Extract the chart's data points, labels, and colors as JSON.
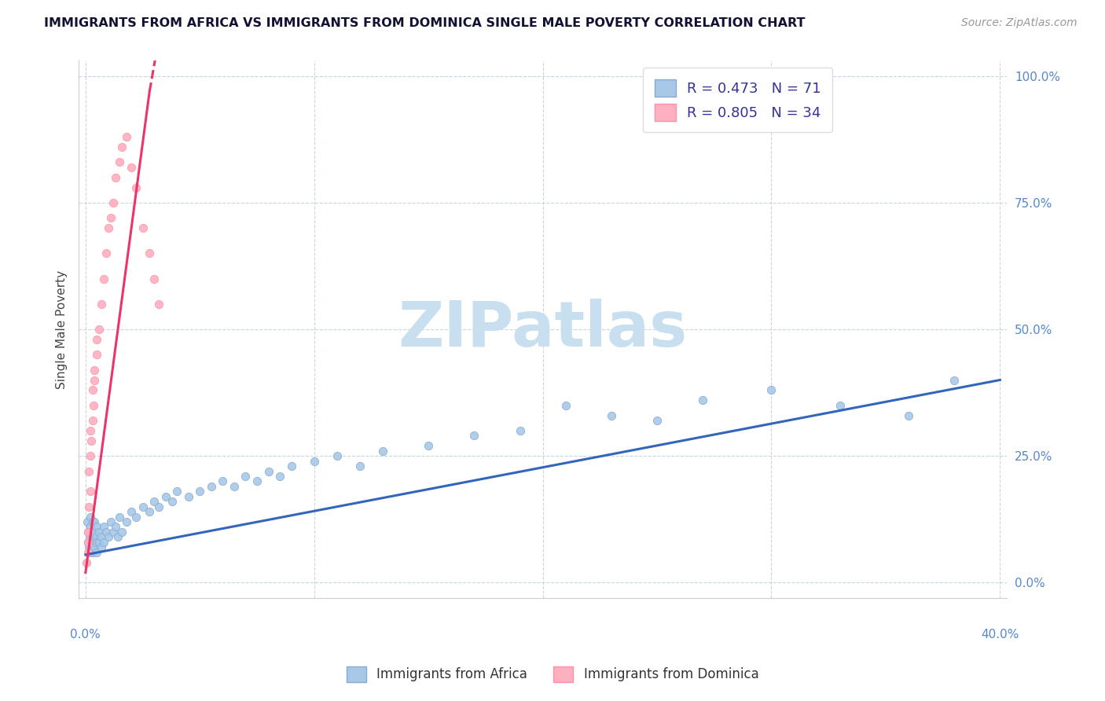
{
  "title": "IMMIGRANTS FROM AFRICA VS IMMIGRANTS FROM DOMINICA SINGLE MALE POVERTY CORRELATION CHART",
  "source": "Source: ZipAtlas.com",
  "ylabel": "Single Male Poverty",
  "xlim": [
    0.0,
    0.4
  ],
  "ylim": [
    0.0,
    1.0
  ],
  "ytick_vals": [
    0.0,
    0.25,
    0.5,
    0.75,
    1.0
  ],
  "ytick_labels": [
    "0.0%",
    "25.0%",
    "50.0%",
    "75.0%",
    "100.0%"
  ],
  "legend_R1": "R = 0.473",
  "legend_N1": "N = 71",
  "legend_R2": "R = 0.805",
  "legend_N2": "N = 34",
  "africa_color": "#a8c8e8",
  "africa_edge": "#88aad0",
  "dominica_color": "#ffb0c0",
  "dominica_edge": "#ff90a8",
  "regression_blue": "#3366bb",
  "regression_pink": "#ee3366",
  "watermark": "ZIPatlas",
  "watermark_color": "#c8dff0",
  "tick_color": "#5588cc",
  "africa_label": "Immigrants from Africa",
  "dominica_label": "Immigrants from Dominica",
  "africa_x": [
    0.0008,
    0.001,
    0.0012,
    0.0015,
    0.0018,
    0.002,
    0.002,
    0.002,
    0.0022,
    0.0025,
    0.003,
    0.003,
    0.003,
    0.003,
    0.0035,
    0.004,
    0.004,
    0.004,
    0.0045,
    0.005,
    0.005,
    0.005,
    0.006,
    0.006,
    0.007,
    0.007,
    0.008,
    0.008,
    0.009,
    0.01,
    0.011,
    0.012,
    0.013,
    0.014,
    0.015,
    0.016,
    0.018,
    0.02,
    0.022,
    0.025,
    0.028,
    0.03,
    0.032,
    0.035,
    0.038,
    0.04,
    0.045,
    0.05,
    0.055,
    0.06,
    0.065,
    0.07,
    0.075,
    0.08,
    0.085,
    0.09,
    0.1,
    0.11,
    0.12,
    0.13,
    0.15,
    0.17,
    0.19,
    0.21,
    0.23,
    0.25,
    0.27,
    0.3,
    0.33,
    0.36,
    0.38
  ],
  "africa_y": [
    0.12,
    0.08,
    0.1,
    0.07,
    0.09,
    0.11,
    0.06,
    0.13,
    0.08,
    0.1,
    0.09,
    0.07,
    0.12,
    0.06,
    0.08,
    0.1,
    0.07,
    0.12,
    0.09,
    0.08,
    0.11,
    0.06,
    0.1,
    0.08,
    0.09,
    0.07,
    0.11,
    0.08,
    0.1,
    0.09,
    0.12,
    0.1,
    0.11,
    0.09,
    0.13,
    0.1,
    0.12,
    0.14,
    0.13,
    0.15,
    0.14,
    0.16,
    0.15,
    0.17,
    0.16,
    0.18,
    0.17,
    0.18,
    0.19,
    0.2,
    0.19,
    0.21,
    0.2,
    0.22,
    0.21,
    0.23,
    0.24,
    0.25,
    0.23,
    0.26,
    0.27,
    0.29,
    0.3,
    0.35,
    0.33,
    0.32,
    0.36,
    0.38,
    0.35,
    0.33,
    0.4
  ],
  "dominica_x": [
    0.0005,
    0.001,
    0.001,
    0.0012,
    0.0015,
    0.0015,
    0.002,
    0.002,
    0.002,
    0.0025,
    0.003,
    0.003,
    0.0035,
    0.004,
    0.004,
    0.005,
    0.005,
    0.006,
    0.007,
    0.008,
    0.009,
    0.01,
    0.011,
    0.012,
    0.013,
    0.015,
    0.016,
    0.018,
    0.02,
    0.022,
    0.025,
    0.028,
    0.03,
    0.032
  ],
  "dominica_y": [
    0.04,
    0.06,
    0.08,
    0.1,
    0.15,
    0.22,
    0.18,
    0.25,
    0.3,
    0.28,
    0.32,
    0.38,
    0.35,
    0.42,
    0.4,
    0.45,
    0.48,
    0.5,
    0.55,
    0.6,
    0.65,
    0.7,
    0.72,
    0.75,
    0.8,
    0.83,
    0.86,
    0.88,
    0.82,
    0.78,
    0.7,
    0.65,
    0.6,
    0.55
  ]
}
